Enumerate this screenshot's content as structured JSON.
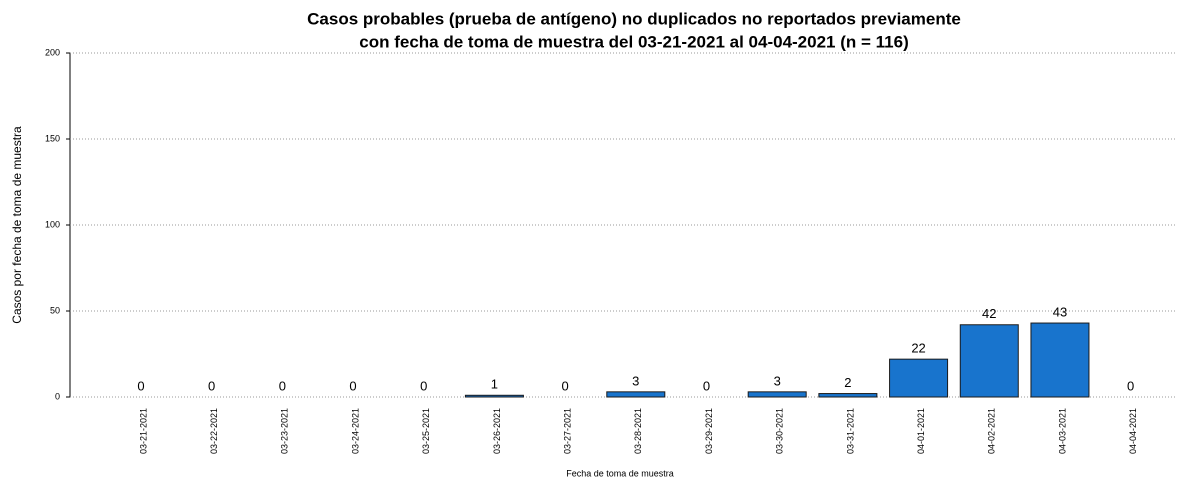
{
  "chart_data": {
    "type": "bar",
    "title": [
      "Casos probables (prueba de antígeno) no duplicados no reportados previamente",
      "con fecha de toma de muestra del 03-21-2021 al 04-04-2021 (n = 116)"
    ],
    "x_label": "Fecha de toma de muestra",
    "y_label": "Casos por fecha de toma de muestra",
    "categories": [
      "03-21-2021",
      "03-22-2021",
      "03-23-2021",
      "03-24-2021",
      "03-25-2021",
      "03-26-2021",
      "03-27-2021",
      "03-28-2021",
      "03-29-2021",
      "03-30-2021",
      "03-31-2021",
      "04-01-2021",
      "04-02-2021",
      "04-03-2021",
      "04-04-2021"
    ],
    "values": [
      0,
      0,
      0,
      0,
      0,
      1,
      0,
      3,
      0,
      3,
      2,
      22,
      42,
      43,
      0
    ],
    "color": "#1874cd",
    "ylim": [
      0,
      200
    ],
    "yticks": [
      0,
      50,
      100,
      150,
      200
    ],
    "grid": true
  }
}
